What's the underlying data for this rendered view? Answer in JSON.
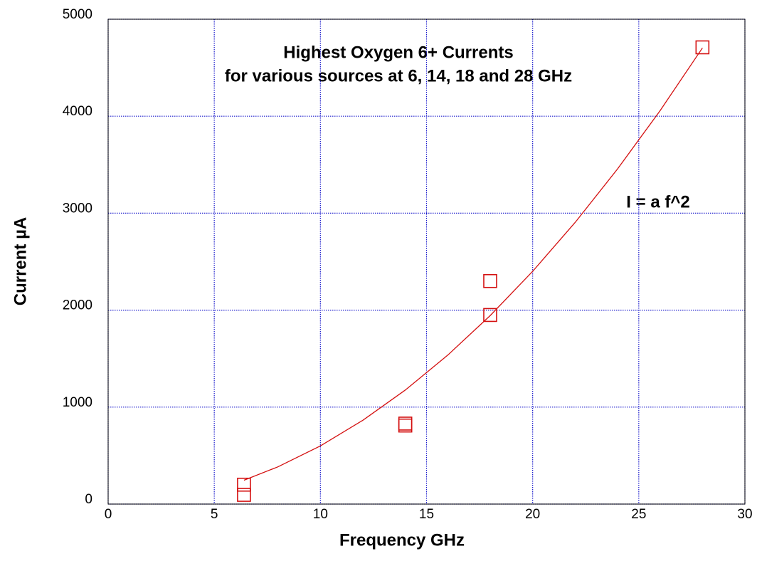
{
  "chart_data": {
    "type": "scatter",
    "title": [
      "Highest Oxygen 6+ Currents",
      "for various sources at 6, 14, 18 and 28 GHz"
    ],
    "xlabel": "Frequency GHz",
    "ylabel": "Current µA",
    "annotation": "I = a f^2",
    "xlim": [
      0,
      30
    ],
    "xticks": [
      0,
      5,
      10,
      15,
      20,
      25,
      30
    ],
    "ylim": [
      0,
      5000
    ],
    "yticks": [
      0,
      1000,
      2000,
      3000,
      4000,
      5000
    ],
    "grid": true,
    "points": {
      "color": "#d41010",
      "x": [
        6.4,
        6.4,
        14,
        14,
        18,
        18,
        28
      ],
      "values": [
        200,
        95,
        810,
        830,
        2300,
        1950,
        4710
      ]
    },
    "fit": {
      "color": "#d41010",
      "x": [
        6.4,
        8,
        10,
        12,
        14,
        16,
        18,
        20,
        22,
        24,
        26,
        28
      ],
      "values": [
        246,
        384,
        600,
        864,
        1176,
        1536,
        1944,
        2400,
        2904,
        3456,
        4056,
        4704
      ]
    }
  }
}
